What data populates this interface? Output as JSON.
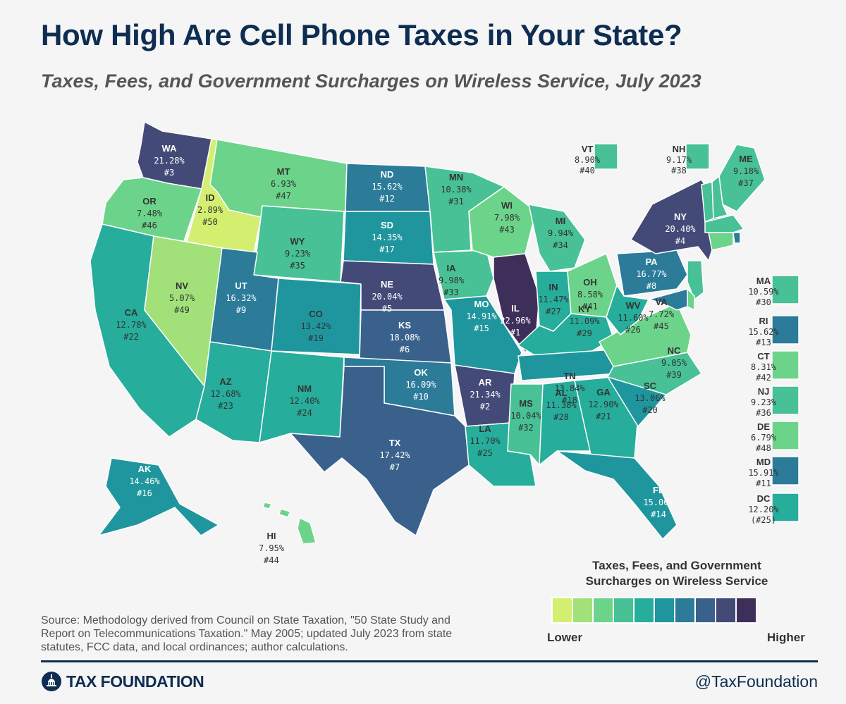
{
  "title": "How High Are Cell Phone Taxes in Your State?",
  "subtitle": "Taxes, Fees, and Government Surcharges on Wireless Service, July 2023",
  "colors": {
    "scale": [
      "#d4ee70",
      "#a2e07a",
      "#6cd48a",
      "#47c195",
      "#26ad9b",
      "#1f969e",
      "#2b7b99",
      "#39618c",
      "#434a77",
      "#3e2f5a"
    ],
    "title": "#0e2d52"
  },
  "states": {
    "WA": {
      "rate": "21.28%",
      "rank": "#3"
    },
    "OR": {
      "rate": "7.48%",
      "rank": "#46"
    },
    "CA": {
      "rate": "12.78%",
      "rank": "#22"
    },
    "ID": {
      "rate": "2.89%",
      "rank": "#50"
    },
    "NV": {
      "rate": "5.07%",
      "rank": "#49"
    },
    "MT": {
      "rate": "6.93%",
      "rank": "#47"
    },
    "WY": {
      "rate": "9.23%",
      "rank": "#35"
    },
    "UT": {
      "rate": "16.32%",
      "rank": "#9"
    },
    "AZ": {
      "rate": "12.68%",
      "rank": "#23"
    },
    "CO": {
      "rate": "13.42%",
      "rank": "#19"
    },
    "NM": {
      "rate": "12.40%",
      "rank": "#24"
    },
    "ND": {
      "rate": "15.62%",
      "rank": "#12"
    },
    "SD": {
      "rate": "14.35%",
      "rank": "#17"
    },
    "NE": {
      "rate": "20.04%",
      "rank": "#5"
    },
    "KS": {
      "rate": "18.08%",
      "rank": "#6"
    },
    "OK": {
      "rate": "16.09%",
      "rank": "#10"
    },
    "TX": {
      "rate": "17.42%",
      "rank": "#7"
    },
    "MN": {
      "rate": "10.38%",
      "rank": "#31"
    },
    "IA": {
      "rate": "9.98%",
      "rank": "#33"
    },
    "MO": {
      "rate": "14.91%",
      "rank": "#15"
    },
    "AR": {
      "rate": "21.34%",
      "rank": "#2"
    },
    "LA": {
      "rate": "11.70%",
      "rank": "#25"
    },
    "WI": {
      "rate": "7.98%",
      "rank": "#43"
    },
    "IL": {
      "rate": "22.96%",
      "rank": "#1"
    },
    "MI": {
      "rate": "9.94%",
      "rank": "#34"
    },
    "IN": {
      "rate": "11.47%",
      "rank": "#27"
    },
    "OH": {
      "rate": "8.58%",
      "rank": "#41"
    },
    "KY": {
      "rate": "11.09%",
      "rank": "#29"
    },
    "TN": {
      "rate": "13.84%",
      "rank": "#18"
    },
    "MS": {
      "rate": "10.04%",
      "rank": "#32"
    },
    "AL": {
      "rate": "11.38%",
      "rank": "#28"
    },
    "GA": {
      "rate": "12.90%",
      "rank": "#21"
    },
    "FL": {
      "rate": "15.06%",
      "rank": "#14"
    },
    "SC": {
      "rate": "13.06%",
      "rank": "#20"
    },
    "NC": {
      "rate": "9.05%",
      "rank": "#39"
    },
    "VA": {
      "rate": "7.72%",
      "rank": "#45"
    },
    "WV": {
      "rate": "11.60%",
      "rank": "#26"
    },
    "PA": {
      "rate": "16.77%",
      "rank": "#8"
    },
    "NY": {
      "rate": "20.40%",
      "rank": "#4"
    },
    "ME": {
      "rate": "9.18%",
      "rank": "#37"
    },
    "VT": {
      "rate": "8.90%",
      "rank": "#40"
    },
    "NH": {
      "rate": "9.17%",
      "rank": "#38"
    },
    "MA": {
      "rate": "10.59%",
      "rank": "#30"
    },
    "RI": {
      "rate": "15.62%",
      "rank": "#13"
    },
    "CT": {
      "rate": "8.31%",
      "rank": "#42"
    },
    "NJ": {
      "rate": "9.23%",
      "rank": "#36"
    },
    "DE": {
      "rate": "6.79%",
      "rank": "#48"
    },
    "MD": {
      "rate": "15.91%",
      "rank": "#11"
    },
    "DC": {
      "rate": "12.20%",
      "rank": "(#25)"
    },
    "AK": {
      "rate": "14.46%",
      "rank": "#16"
    },
    "HI": {
      "rate": "7.95%",
      "rank": "#44"
    }
  },
  "legend": {
    "title_line1": "Taxes, Fees, and Government",
    "title_line2": "Surcharges on Wireless Service",
    "low": "Lower",
    "high": "Higher"
  },
  "source": "Source: Methodology derived from Council on State Taxation, \"50 State Study and Report on Telecommunications Taxation.\" May 2005; updated July 2023 from state statutes, FCC data, and local ordinances; author calculations.",
  "brand": "TAX FOUNDATION",
  "handle": "@TaxFoundation"
}
